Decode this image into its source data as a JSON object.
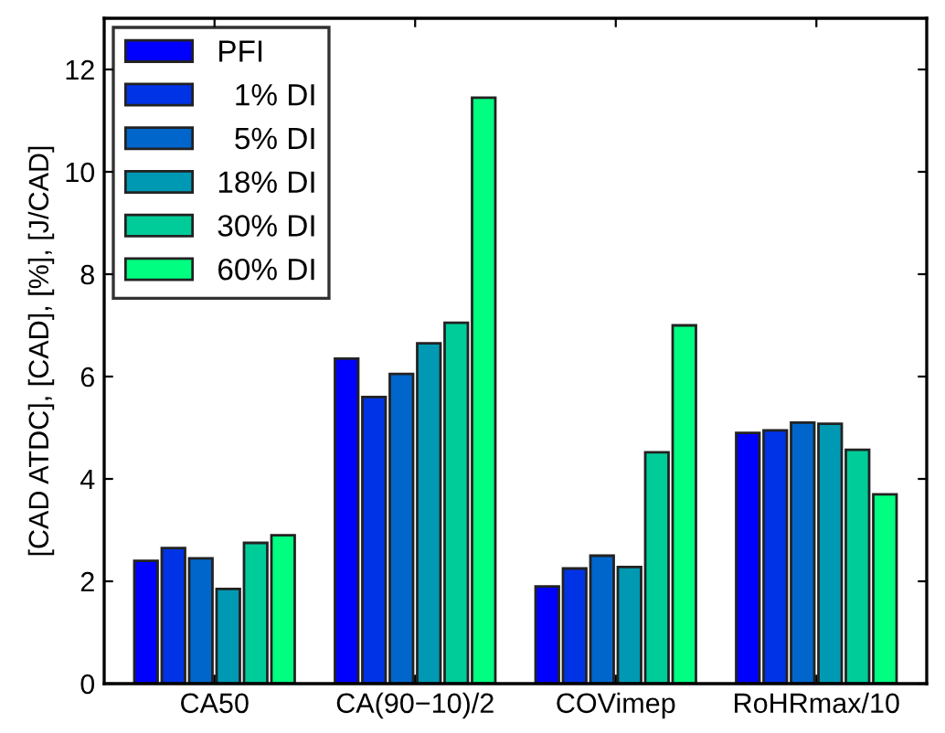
{
  "chart_data": {
    "type": "bar",
    "ylabel": "[CAD ATDC], [CAD], [%], [J/CAD]",
    "categories": [
      "CA50",
      "CA(90−10)/2",
      "COVimep",
      "RoHRmax/10"
    ],
    "series": [
      {
        "name": "PFI",
        "color": "#0000ff",
        "values": [
          2.4,
          6.35,
          1.9,
          4.9
        ]
      },
      {
        "name": "  1% DI",
        "color": "#0033e6",
        "values": [
          2.65,
          5.6,
          2.25,
          4.95
        ]
      },
      {
        "name": "  5% DI",
        "color": "#0066cc",
        "values": [
          2.45,
          6.05,
          2.5,
          5.1
        ]
      },
      {
        "name": "18% DI",
        "color": "#0099b3",
        "values": [
          1.85,
          6.65,
          2.28,
          5.08
        ]
      },
      {
        "name": "30% DI",
        "color": "#00cc99",
        "values": [
          2.75,
          7.05,
          4.52,
          4.57
        ]
      },
      {
        "name": "60% DI",
        "color": "#00ff80",
        "values": [
          2.9,
          11.45,
          7.0,
          3.7
        ]
      }
    ],
    "ylim": [
      0,
      13
    ],
    "yticks": [
      0,
      2,
      4,
      6,
      8,
      10,
      12
    ],
    "grid": false,
    "legend": "top left"
  }
}
